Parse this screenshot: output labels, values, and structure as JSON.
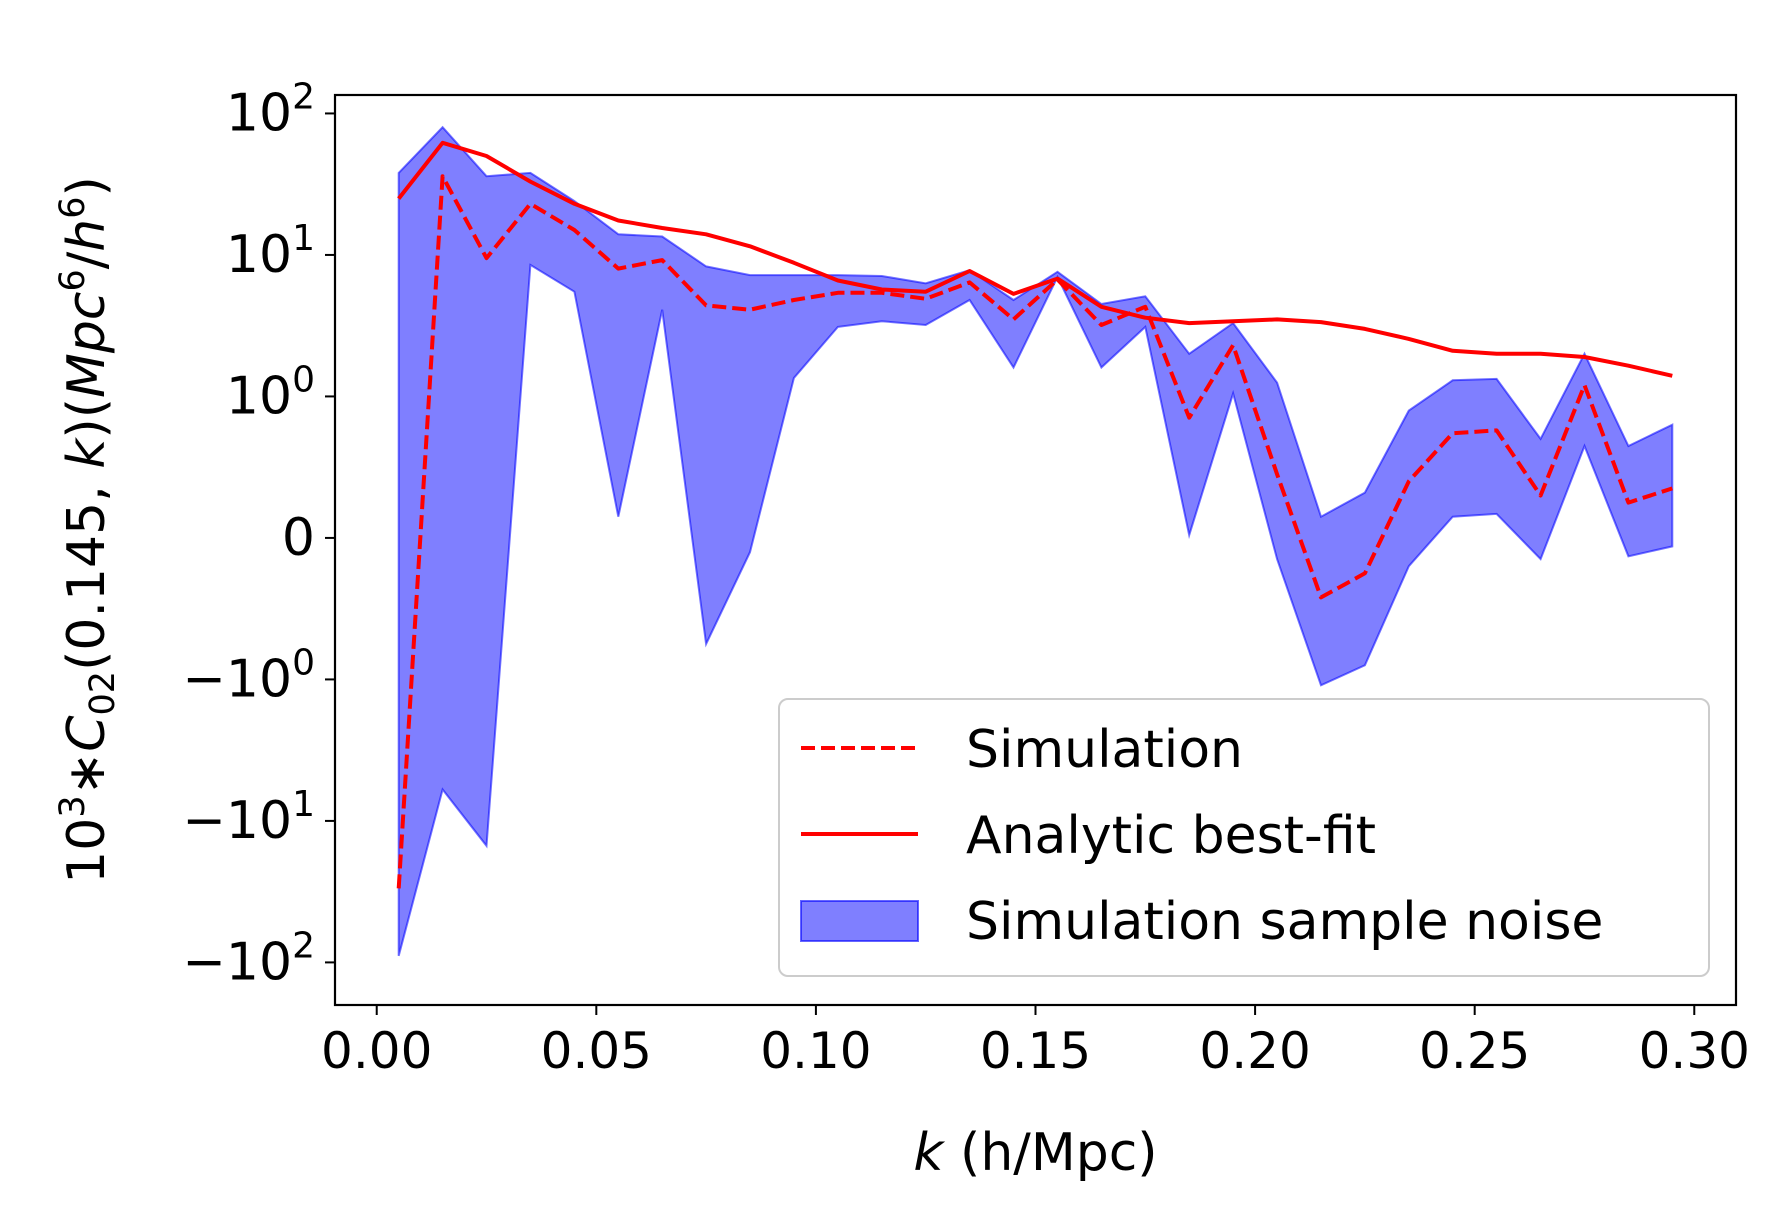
{
  "chart_data": {
    "type": "line",
    "title": "",
    "xlabel_var": "k",
    "xlabel_unit": " (h/Mpc)",
    "ylabel": {
      "prefix": "10",
      "prefix_exp": "3",
      "star": "∗",
      "C": "C",
      "C_sub": "02",
      "args": "(0.145, ",
      "k": "k",
      "close": ")(",
      "Mpc": "Mpc",
      "Mpc_exp": "6",
      "slash": "/",
      "h": "h",
      "h_exp": "6",
      "end": ")"
    },
    "xlim": [
      -0.0095,
      0.3095
    ],
    "yscale": "symlog",
    "symlog_linthresh": 1,
    "ylim": [
      -200,
      135
    ],
    "x_ticks": [
      {
        "value": 0.0,
        "label": "0.00"
      },
      {
        "value": 0.05,
        "label": "0.05"
      },
      {
        "value": 0.1,
        "label": "0.10"
      },
      {
        "value": 0.15,
        "label": "0.15"
      },
      {
        "value": 0.2,
        "label": "0.20"
      },
      {
        "value": 0.25,
        "label": "0.25"
      },
      {
        "value": 0.3,
        "label": "0.30"
      }
    ],
    "y_ticks": [
      {
        "value": 100,
        "sign": "",
        "base": "10",
        "exp": "2"
      },
      {
        "value": 10,
        "sign": "",
        "base": "10",
        "exp": "1"
      },
      {
        "value": 1,
        "sign": "",
        "base": "10",
        "exp": "0"
      },
      {
        "value": 0,
        "sign": "",
        "base": "0",
        "exp": ""
      },
      {
        "value": -1,
        "sign": "−",
        "base": "10",
        "exp": "0"
      },
      {
        "value": -10,
        "sign": "−",
        "base": "10",
        "exp": "1"
      },
      {
        "value": -100,
        "sign": "−",
        "base": "10",
        "exp": "2"
      }
    ],
    "x": [
      0.005,
      0.015,
      0.025,
      0.035,
      0.045,
      0.055,
      0.065,
      0.075,
      0.085,
      0.095,
      0.105,
      0.115,
      0.125,
      0.135,
      0.145,
      0.155,
      0.165,
      0.175,
      0.185,
      0.195,
      0.205,
      0.215,
      0.225,
      0.235,
      0.245,
      0.255,
      0.265,
      0.275,
      0.285,
      0.295
    ],
    "series": [
      {
        "name": "Simulation",
        "style": "dashed",
        "color": "#ff0000",
        "values": [
          -30,
          36,
          9.5,
          23,
          15,
          8,
          9.2,
          4.4,
          4.1,
          4.8,
          5.4,
          5.4,
          4.9,
          6.4,
          3.5,
          6.7,
          3.2,
          4.3,
          0.85,
          2.3,
          0.45,
          -0.42,
          -0.25,
          0.4,
          0.74,
          0.76,
          0.3,
          1.2,
          0.25,
          0.35
        ]
      },
      {
        "name": "Analytic best-fit",
        "style": "solid",
        "color": "#ff0000",
        "values": [
          25,
          62,
          50,
          33,
          23,
          17.5,
          15.5,
          14,
          11.5,
          8.8,
          6.6,
          5.7,
          5.5,
          7.7,
          5.3,
          6.8,
          4.3,
          3.6,
          3.3,
          3.4,
          3.5,
          3.35,
          3.0,
          2.55,
          2.1,
          2.0,
          2.0,
          1.9,
          1.65,
          1.4
        ]
      }
    ],
    "band": {
      "name": "Simulation sample noise",
      "fill_color": "#0000ff",
      "fill_opacity": 0.5,
      "lower": [
        -90,
        -6,
        -15,
        8.5,
        5.5,
        0.15,
        4.1,
        -0.75,
        -0.1,
        1.35,
        3.1,
        3.4,
        3.2,
        4.8,
        1.6,
        7,
        1.6,
        3.1,
        0.02,
        1.05,
        -0.15,
        -1.1,
        -0.9,
        -0.2,
        0.15,
        0.17,
        -0.15,
        0.65,
        -0.13,
        -0.06
      ],
      "upper": [
        38,
        80,
        36,
        38,
        24,
        14,
        13.5,
        8.3,
        7.2,
        7.2,
        7.2,
        7.1,
        6.3,
        7.8,
        4.8,
        7.6,
        4.5,
        5.1,
        2.0,
        3.3,
        1.25,
        0.15,
        0.32,
        0.9,
        1.3,
        1.33,
        0.7,
        2.0,
        0.65,
        0.8
      ]
    },
    "legend": {
      "location": "lower right",
      "entries": [
        "Simulation",
        "Analytic best-fit",
        "Simulation sample noise"
      ]
    }
  }
}
